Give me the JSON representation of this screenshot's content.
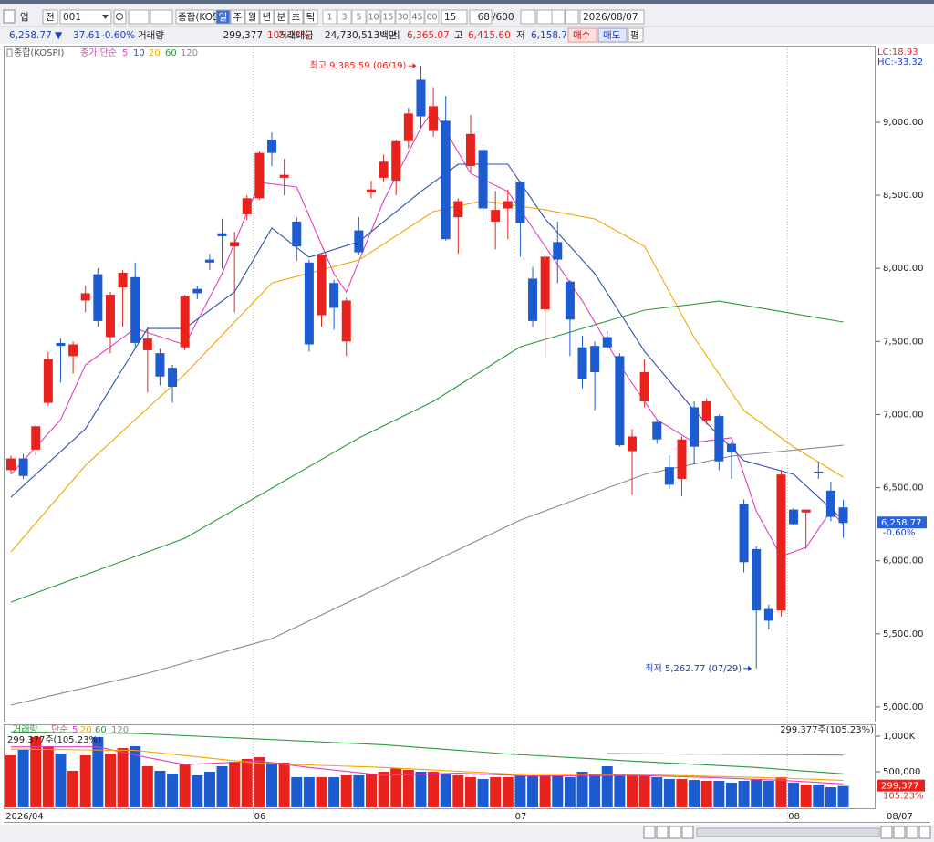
{
  "toolbar": {
    "market": "업",
    "scope": "전",
    "code": "001",
    "name": "종합(KOSPI)",
    "periods": [
      "일",
      "주",
      "월",
      "년",
      "분",
      "초",
      "틱"
    ],
    "intervals": [
      "1",
      "3",
      "5",
      "10",
      "15",
      "30",
      "45",
      "60"
    ],
    "interval": "15",
    "count": "68",
    "max": "/600",
    "date": "2026/08/07"
  },
  "quote": {
    "price": "6,258.77 ▼",
    "change": "37.61",
    "rate": "-0.60%",
    "volume_label": "거래량",
    "volume": "299,377",
    "volume_rate": "105.23%",
    "amount_label": "거래대금",
    "amount": "24,730,513백만",
    "open_label": "시",
    "open": "6,365.07",
    "high_label": "고",
    "high": "6,415.60",
    "low_label": "저",
    "low": "6,158.7",
    "buy": "매수",
    "sell": "매도",
    "avg": "평"
  },
  "chart_data": [
    {
      "type": "candlestick",
      "title": "종합(KOSPI)",
      "ma_label": "종가 단순",
      "up_color": "#e8231e",
      "down_color": "#1c5bd0",
      "open": [
        6620,
        6700,
        6760,
        7080,
        7490,
        7400,
        7780,
        7960,
        7530,
        7870,
        7940,
        7440,
        7420,
        7320,
        7460,
        7860,
        8060,
        8240,
        8150,
        8370,
        8480,
        8880,
        8620,
        8320,
        8040,
        7680,
        7900,
        7500,
        8260,
        8520,
        8620,
        8600,
        8870,
        9290,
        8940,
        9010,
        8350,
        8700,
        8810,
        8320,
        8410,
        8590,
        7930,
        7720,
        8180,
        7910,
        7460,
        7470,
        7530,
        7400,
        6750,
        7090,
        6950,
        6640,
        6560,
        7050,
        6960,
        6990,
        6800,
        6390,
        6080,
        5670,
        5660,
        6350,
        6330,
        6610,
        6480,
        6365.07
      ],
      "high": [
        6720,
        6730,
        6930,
        7430,
        7520,
        7500,
        7880,
        8000,
        7840,
        7990,
        8040,
        7600,
        7450,
        7340,
        7820,
        7880,
        8100,
        8340,
        8250,
        8500,
        8800,
        8930,
        8750,
        8350,
        8060,
        8100,
        7920,
        7800,
        8350,
        8600,
        8780,
        8880,
        9100,
        9385.59,
        9240,
        9180,
        8480,
        9050,
        8840,
        8530,
        8540,
        8600,
        8010,
        8100,
        8320,
        7920,
        7540,
        7500,
        7570,
        7420,
        6900,
        7380,
        6960,
        6720,
        6850,
        7090,
        7110,
        7000,
        6810,
        6420,
        6100,
        5700,
        6620,
        6360,
        6350,
        6680,
        6540,
        6415.6
      ],
      "low": [
        6600,
        6560,
        6720,
        7060,
        7220,
        7280,
        7700,
        7600,
        7420,
        7600,
        7460,
        7150,
        7200,
        7080,
        7440,
        7790,
        7990,
        8000,
        7700,
        8330,
        8470,
        8700,
        8500,
        8050,
        7430,
        7600,
        7580,
        7400,
        8090,
        8480,
        8590,
        8500,
        8820,
        8960,
        8900,
        8190,
        8100,
        8660,
        8300,
        8130,
        8200,
        8080,
        7600,
        7390,
        7900,
        7400,
        7180,
        7030,
        7440,
        6780,
        6450,
        7050,
        6800,
        6490,
        6440,
        6660,
        6930,
        6620,
        6560,
        5920,
        5262.77,
        5530,
        5620,
        6240,
        6080,
        6560,
        6270,
        6158.7
      ],
      "close": [
        6700,
        6580,
        6920,
        7380,
        7470,
        7480,
        7830,
        7640,
        7820,
        7970,
        7490,
        7520,
        7260,
        7190,
        7810,
        7830,
        8040,
        8220,
        8180,
        8480,
        8790,
        8790,
        8640,
        8150,
        7480,
        8090,
        7730,
        7780,
        8110,
        8540,
        8730,
        8870,
        9060,
        9040,
        9110,
        8200,
        8460,
        8920,
        8410,
        8400,
        8460,
        8310,
        7640,
        8080,
        8060,
        7650,
        7240,
        7290,
        7460,
        6790,
        6850,
        7290,
        6830,
        6520,
        6830,
        6780,
        7090,
        6680,
        6740,
        5990,
        5660,
        5590,
        6590,
        6250,
        6350,
        6600,
        6300,
        6258.77
      ],
      "series": [
        {
          "name": "5",
          "color": "#e23fbf",
          "x": [
            0,
            4,
            6,
            10,
            14,
            17,
            20,
            23,
            26,
            27,
            30,
            33,
            34,
            37,
            40,
            43,
            46,
            49,
            52,
            55,
            58,
            60,
            62,
            64,
            66,
            67
          ],
          "values": [
            6591,
            6965,
            7340,
            7589,
            7477,
            7964,
            8588,
            8557,
            7964,
            7839,
            8463,
            8962,
            9087,
            8650,
            8526,
            8151,
            7777,
            7340,
            6965,
            6809,
            6841,
            6341,
            6029,
            6092,
            6341,
            6248
          ]
        },
        {
          "name": "10",
          "color": "#2a4fb0",
          "x": [
            0,
            6,
            11,
            14,
            18,
            21,
            24,
            28,
            33,
            36,
            40,
            43,
            47,
            51,
            55,
            59,
            63,
            67
          ],
          "values": [
            6435,
            6903,
            7589,
            7589,
            7839,
            8276,
            8076,
            8182,
            8526,
            8713,
            8713,
            8338,
            7964,
            7433,
            7028,
            6685,
            6591,
            6279
          ]
        },
        {
          "name": "20",
          "color": "#f0a800",
          "x": [
            0,
            6,
            14,
            21,
            28,
            34,
            38,
            43,
            47,
            51,
            55,
            59,
            63,
            67
          ],
          "values": [
            6060,
            6653,
            7277,
            7900,
            8057,
            8388,
            8463,
            8400,
            8338,
            8151,
            7527,
            7028,
            6778,
            6572
          ]
        },
        {
          "name": "60",
          "color": "#2a9a3a",
          "x": [
            0,
            14,
            21,
            28,
            34,
            41,
            51,
            57,
            67
          ],
          "values": [
            5717,
            6154,
            6497,
            6840,
            7090,
            7464,
            7714,
            7776,
            7633
          ]
        },
        {
          "name": "120",
          "color": "#8a8a8a",
          "x": [
            0,
            11,
            21,
            41,
            51,
            58,
            67
          ],
          "values": [
            5013,
            5230,
            5467,
            6278,
            6591,
            6716,
            6790
          ]
        }
      ],
      "ylim": [
        4906,
        9524
      ],
      "yticks": [
        {
          "value": 5000,
          "label": "5,000.00"
        },
        {
          "value": 5500,
          "label": "5,500.00"
        },
        {
          "value": 6000,
          "label": "6,000.00"
        },
        {
          "value": 6500,
          "label": "6,500.00"
        },
        {
          "value": 7000,
          "label": "7,000.00"
        },
        {
          "value": 7500,
          "label": "7,500.00"
        },
        {
          "value": 8000,
          "label": "8,000.00"
        },
        {
          "value": 8500,
          "label": "8,500.00"
        },
        {
          "value": 9000,
          "label": "9,000.00"
        }
      ],
      "xticks": [
        {
          "value": 0,
          "label": "2026/04"
        },
        {
          "value": 20,
          "label": "06"
        },
        {
          "value": 41,
          "label": "07"
        },
        {
          "value": 63,
          "label": "08"
        }
      ],
      "last_date": "08/07",
      "annotations": [
        {
          "text": "최고 9,385.59 (06/19)",
          "index": 33,
          "at": "high",
          "color": "#e8231e"
        },
        {
          "text": "최저 5,262.77 (07/29)",
          "index": 60,
          "at": "low",
          "color": "#1c3fc0"
        }
      ],
      "lc": "LC:18.93",
      "hc": "HC:-33.32",
      "last_label": "6,258.77",
      "last_change": "-0.60%"
    },
    {
      "type": "bar",
      "title": "거래량",
      "ma_label": "단순",
      "summary": "299,377주(105.23%)",
      "values": [
        731000,
        808000,
        987000,
        859000,
        756000,
        513000,
        731000,
        987000,
        756000,
        833000,
        859000,
        577000,
        513000,
        474000,
        603000,
        449000,
        500000,
        577000,
        641000,
        680000,
        705000,
        628000,
        628000,
        423000,
        423000,
        423000,
        423000,
        449000,
        449000,
        474000,
        500000,
        551000,
        526000,
        500000,
        500000,
        474000,
        449000,
        423000,
        397000,
        423000,
        423000,
        449000,
        449000,
        449000,
        449000,
        423000,
        500000,
        474000,
        577000,
        474000,
        449000,
        449000,
        423000,
        397000,
        397000,
        385000,
        372000,
        372000,
        346000,
        372000,
        397000,
        372000,
        423000,
        346000,
        321000,
        321000,
        282000,
        299377
      ],
      "series": [
        {
          "name": "5",
          "color": "#e23fbf",
          "x": [
            0,
            7,
            11,
            14,
            20,
            24,
            30,
            36,
            42,
            50,
            56,
            62,
            67
          ],
          "values": [
            850000,
            850000,
            700000,
            600000,
            650000,
            560000,
            450000,
            480000,
            440000,
            450000,
            420000,
            380000,
            330000
          ]
        },
        {
          "name": "20",
          "color": "#f0a800",
          "x": [
            0,
            10,
            20,
            30,
            40,
            50,
            60,
            67
          ],
          "values": [
            820000,
            800000,
            620000,
            560000,
            470000,
            460000,
            420000,
            380000
          ]
        },
        {
          "name": "60",
          "color": "#2a9a3a",
          "x": [
            0,
            10,
            20,
            30,
            40,
            50,
            60,
            67
          ],
          "values": [
            1060000,
            1040000,
            960000,
            880000,
            750000,
            650000,
            560000,
            470000
          ]
        },
        {
          "name": "120",
          "color": "#8a8a8a",
          "x": [
            48,
            67
          ],
          "values": [
            756000,
            735000
          ]
        }
      ],
      "ylim": [
        0,
        1090000
      ],
      "yticks": [
        {
          "value": 1000000,
          "label": "1,000K"
        },
        {
          "value": 500000,
          "label": "500,000"
        }
      ],
      "last_label": "299,377",
      "last_rate": "105.23%"
    }
  ]
}
